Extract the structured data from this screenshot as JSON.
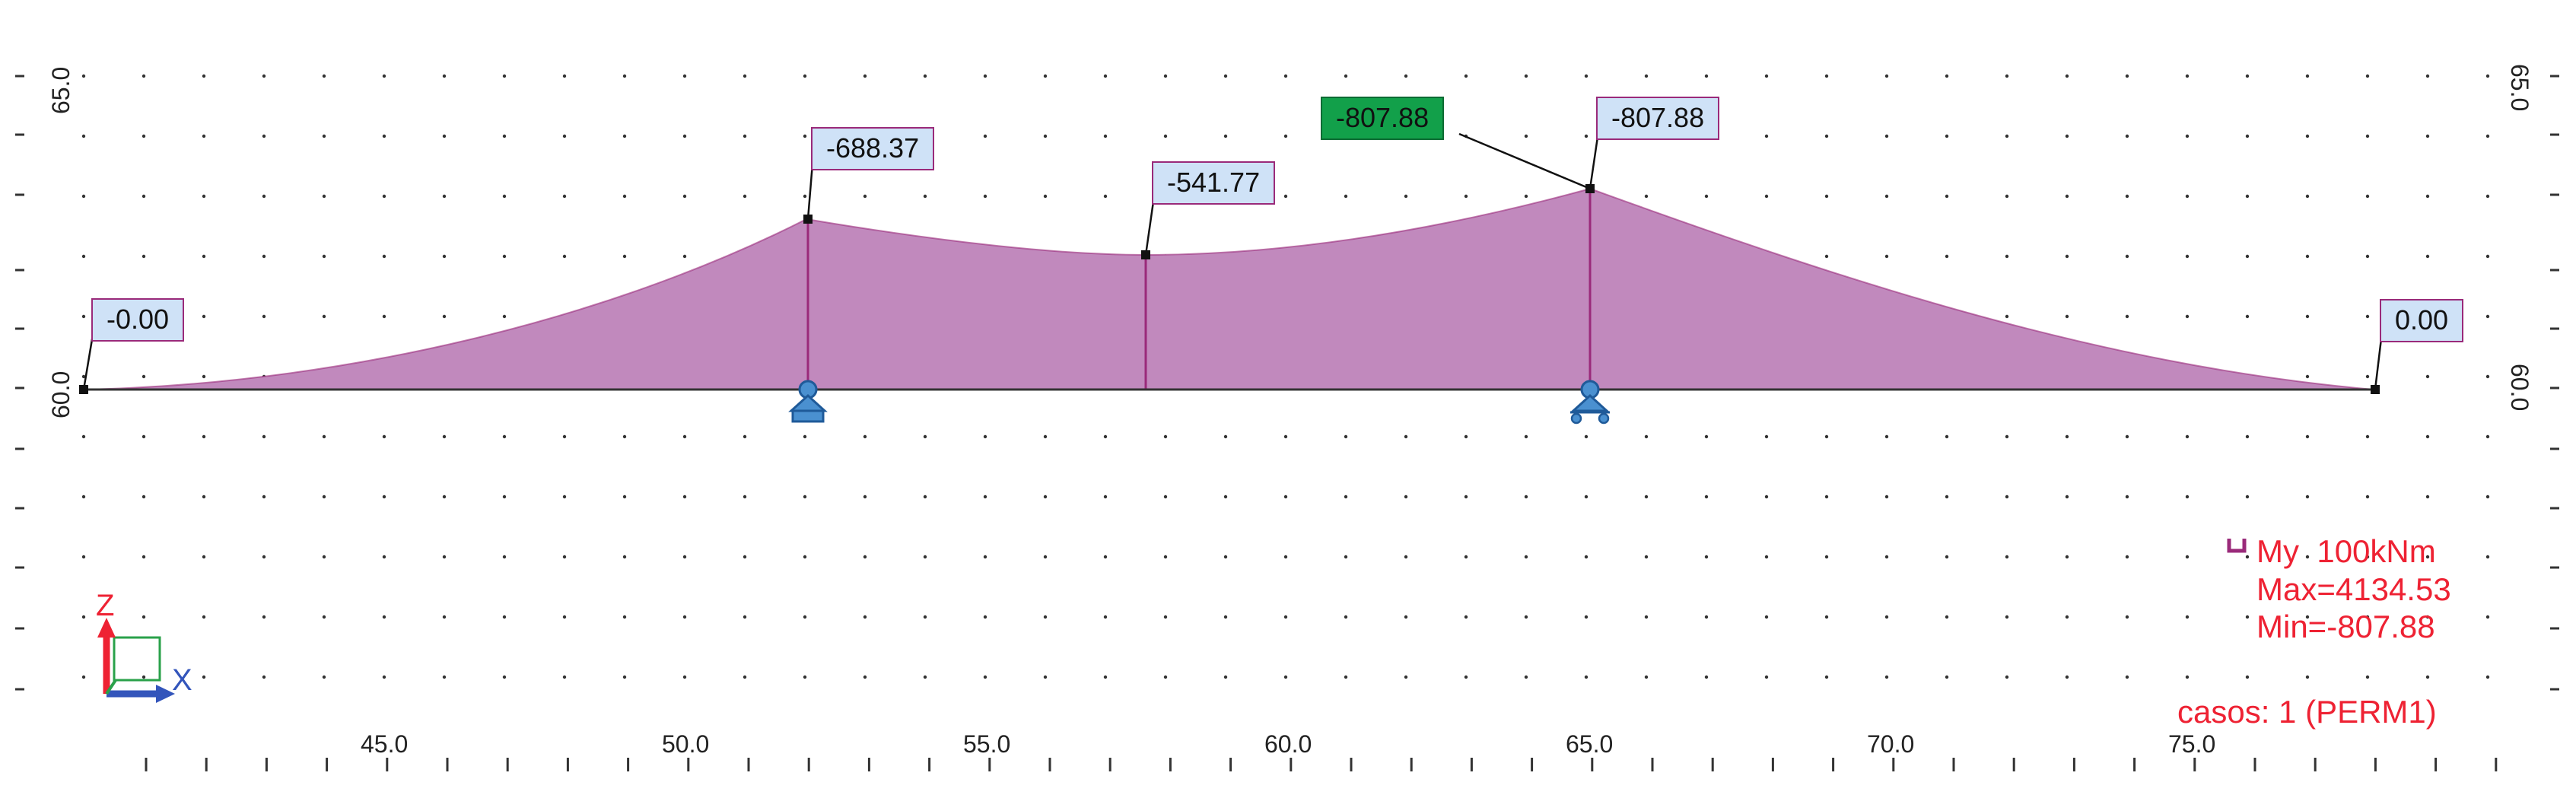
{
  "diagram": {
    "result_labels": [
      {
        "id": "left-end",
        "text": "-0.00"
      },
      {
        "id": "support-1",
        "text": "-688.37"
      },
      {
        "id": "midspan",
        "text": "-541.77"
      },
      {
        "id": "min-highlight",
        "text": "-807.88"
      },
      {
        "id": "support-2",
        "text": "-807.88"
      },
      {
        "id": "right-end",
        "text": "0.00"
      }
    ],
    "x_ticks": [
      "45.0",
      "50.0",
      "55.0",
      "60.0",
      "65.0",
      "70.0",
      "75.0"
    ],
    "y_ticks_left": [
      "65.0",
      "60.0"
    ],
    "y_ticks_right": [
      "65.0",
      "60.0"
    ],
    "legend": {
      "quantity": "My",
      "scale": "100kNm",
      "max": "Max=4134.53",
      "min": "Min=-807.88",
      "case": "casos: 1 (PERM1)"
    },
    "axes": {
      "z": "Z",
      "x": "X"
    },
    "colors": {
      "moment_fill": "#c189bd",
      "moment_line": "#9a2a7a",
      "support": "#4a90d0",
      "label_bg": "#cfe2f7",
      "highlight": "#12a04a",
      "legend_text": "#ee2233",
      "axis_z": "#ee2233",
      "axis_x": "#3355bb",
      "axis_y": "#2aa14a"
    }
  }
}
